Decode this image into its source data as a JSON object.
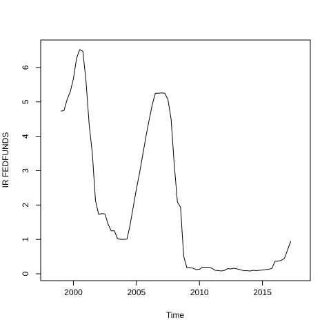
{
  "chart_data": {
    "type": "line",
    "title": "",
    "xlabel": "Time",
    "ylabel": "IR FEDFUNDS",
    "xlim": [
      1997.4,
      2018.8
    ],
    "ylim": [
      -0.2,
      6.8
    ],
    "x_ticks": [
      2000,
      2005,
      2010,
      2015
    ],
    "x_tick_labels": [
      "2000",
      "2005",
      "2010",
      "2015"
    ],
    "y_ticks": [
      0,
      1,
      2,
      3,
      4,
      5,
      6
    ],
    "y_tick_labels": [
      "0",
      "1",
      "2",
      "3",
      "4",
      "5",
      "6"
    ],
    "grid": false,
    "legend": "none",
    "line_color": "#000000",
    "series": [
      {
        "x": [
          1999.0,
          1999.25,
          1999.5,
          1999.75,
          2000.0,
          2000.25,
          2000.5,
          2000.75,
          2001.0,
          2001.25,
          2001.5,
          2001.75,
          2002.0,
          2002.25,
          2002.5,
          2002.75,
          2003.0,
          2003.25,
          2003.5,
          2003.75,
          2004.0,
          2004.25,
          2004.5,
          2004.75,
          2005.0,
          2005.25,
          2005.5,
          2005.75,
          2006.0,
          2006.25,
          2006.5,
          2006.75,
          2007.0,
          2007.25,
          2007.5,
          2007.75,
          2008.0,
          2008.25,
          2008.5,
          2008.75,
          2009.0,
          2009.25,
          2009.5,
          2009.75,
          2010.0,
          2010.25,
          2010.5,
          2010.75,
          2011.0,
          2011.25,
          2011.5,
          2011.75,
          2012.0,
          2012.25,
          2012.5,
          2012.75,
          2013.0,
          2013.25,
          2013.5,
          2013.75,
          2014.0,
          2014.25,
          2014.5,
          2014.75,
          2015.0,
          2015.25,
          2015.5,
          2015.75,
          2016.0,
          2016.25,
          2016.5,
          2016.75,
          2017.0,
          2017.25
        ],
        "values": [
          4.73,
          4.75,
          5.07,
          5.3,
          5.68,
          6.27,
          6.52,
          6.47,
          5.59,
          4.33,
          3.5,
          2.13,
          1.73,
          1.75,
          1.74,
          1.44,
          1.25,
          1.25,
          1.02,
          1.0,
          1.0,
          1.01,
          1.43,
          1.95,
          2.47,
          2.94,
          3.46,
          3.98,
          4.46,
          4.91,
          5.25,
          5.25,
          5.26,
          5.25,
          5.07,
          4.5,
          3.18,
          2.09,
          1.94,
          0.51,
          0.18,
          0.18,
          0.16,
          0.12,
          0.13,
          0.19,
          0.19,
          0.19,
          0.16,
          0.1,
          0.09,
          0.08,
          0.1,
          0.15,
          0.14,
          0.16,
          0.14,
          0.12,
          0.09,
          0.09,
          0.08,
          0.1,
          0.09,
          0.1,
          0.11,
          0.12,
          0.13,
          0.16,
          0.36,
          0.37,
          0.39,
          0.45,
          0.7,
          0.95
        ]
      }
    ]
  }
}
